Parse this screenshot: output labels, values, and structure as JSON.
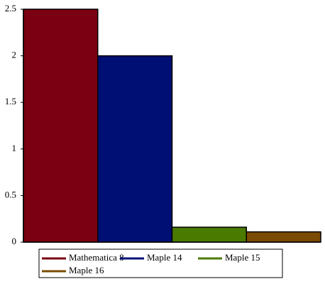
{
  "chart_data": {
    "type": "bar",
    "series": [
      {
        "name": "Mathematica 8",
        "color": "#7a0012",
        "values": [
          2.5
        ]
      },
      {
        "name": "Maple 14",
        "color": "#000f74",
        "values": [
          2.0
        ]
      },
      {
        "name": "Maple 15",
        "color": "#4a7a00",
        "values": [
          0.16
        ]
      },
      {
        "name": "Maple 16",
        "color": "#7a4b00",
        "values": [
          0.11
        ]
      }
    ],
    "ylim": [
      0,
      2.5
    ],
    "yticks": [
      0,
      0.5,
      1,
      1.5,
      2,
      2.5
    ]
  }
}
